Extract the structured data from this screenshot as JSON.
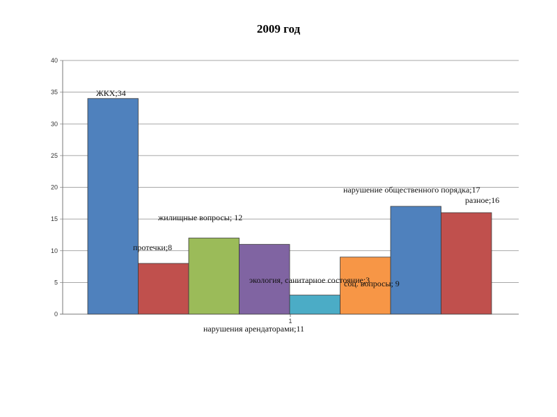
{
  "chart_data": {
    "type": "bar",
    "title": "2009 год",
    "xlabel": "",
    "ylabel": "",
    "categories": [
      "1"
    ],
    "ylim": [
      0,
      40
    ],
    "yticks": [
      0,
      5,
      10,
      15,
      20,
      25,
      30,
      35,
      40
    ],
    "grid": true,
    "legend": "none",
    "series": [
      {
        "label": "ЖКХ;34",
        "value": 34,
        "color": "#4F81BD"
      },
      {
        "label": "протечки;8",
        "value": 8,
        "color": "#C0504D"
      },
      {
        "label": "жилищные вопросы; 12",
        "value": 12,
        "color": "#9BBB59"
      },
      {
        "label": "нарушения арендаторами;11",
        "value": 11,
        "color": "#8064A2"
      },
      {
        "label": "экология, санитарное состояние;3",
        "value": 3,
        "color": "#4BACC6"
      },
      {
        "label": "соц. вопросы; 9",
        "value": 9,
        "color": "#F79646"
      },
      {
        "label": "нарушение общественного порядка;17",
        "value": 17,
        "color": "#4F81BD"
      },
      {
        "label": "разное;16",
        "value": 16,
        "color": "#C0504D"
      }
    ]
  }
}
